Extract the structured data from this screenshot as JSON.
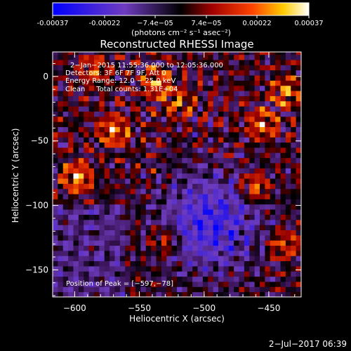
{
  "colorbar": {
    "ticks": [
      "-0.00037",
      "-0.00022",
      "−7.4e−05",
      "7.4e−05",
      "0.00022",
      "0.00037"
    ],
    "tick_values": [
      -0.00037,
      -0.00022,
      -7.4e-05,
      7.4e-05,
      0.00022,
      0.00037
    ],
    "range": [
      -0.00037,
      0.00037
    ],
    "unit_label": "(photons cm⁻² s⁻¹ asec⁻²)"
  },
  "chart_data": {
    "type": "heatmap",
    "title": "Reconstructed RHESSI Image",
    "xlabel": "Heliocentric X (arcsec)",
    "ylabel": "Heliocentric Y (arcsec)",
    "xlim": [
      -617,
      -425
    ],
    "ylim": [
      -171,
      19
    ],
    "xticks": [
      -600,
      -550,
      -500,
      -450
    ],
    "yticks": [
      0,
      -50,
      -100,
      -150
    ],
    "xtick_labels": [
      "−600",
      "−550",
      "−500",
      "−450"
    ],
    "ytick_labels": [
      "0",
      "−50",
      "−100",
      "−150"
    ],
    "annotations": [
      "2−Jan−2015 11:55:36.000 to 12:05:36.000",
      "Detectors: 3F 6F 7F 9F, Att 0",
      "Energy Range: 12.0 − 25.0 keV",
      "Clean     Total counts: 1.31E+04"
    ],
    "peak_label": "Position of Peak = [−597,−78]",
    "peak_position": [
      -597,
      -78
    ],
    "bright_sources": [
      {
        "x": -598,
        "y": -78,
        "level": 0.85
      },
      {
        "x": -570,
        "y": -42,
        "level": 0.8
      },
      {
        "x": -536,
        "y": -5,
        "level": 0.75
      },
      {
        "x": -461,
        "y": -86,
        "level": 0.8
      },
      {
        "x": -455,
        "y": -37,
        "level": 0.7
      },
      {
        "x": -437,
        "y": -12,
        "level": 0.7
      },
      {
        "x": -530,
        "y": -127,
        "level": 0.6
      },
      {
        "x": -439,
        "y": -130,
        "level": 0.6
      },
      {
        "x": -520,
        "y": -20,
        "level": 0.55
      },
      {
        "x": -585,
        "y": 5,
        "level": 0.55
      }
    ],
    "dark_region": {
      "x": -495,
      "y": -113,
      "level": -0.5
    }
  },
  "footer": {
    "timestamp": "2−Jul−2017 06:39"
  }
}
